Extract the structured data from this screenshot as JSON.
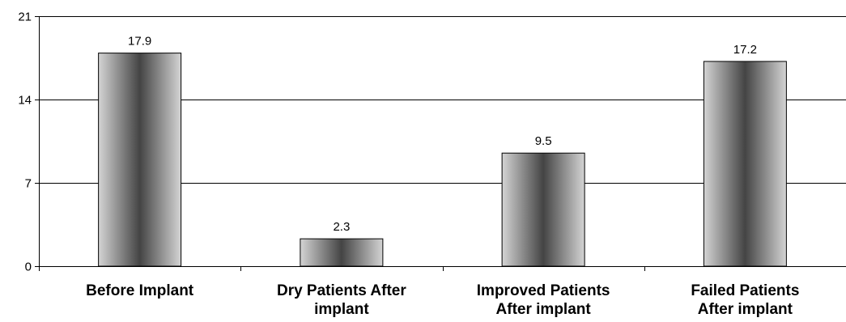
{
  "chart_data": {
    "type": "bar",
    "categories": [
      [
        "Before Implant"
      ],
      [
        "Dry Patients After",
        "implant"
      ],
      [
        "Improved Patients",
        "After implant"
      ],
      [
        "Failed Patients",
        "After implant"
      ]
    ],
    "values": [
      17.9,
      2.3,
      9.5,
      17.2
    ],
    "data_labels": [
      "17.9",
      "2.3",
      "9.5",
      "17.2"
    ],
    "yticks": [
      {
        "value": 0,
        "label": "0"
      },
      {
        "value": 7,
        "label": "7"
      },
      {
        "value": 14,
        "label": "14"
      },
      {
        "value": 21,
        "label": "21"
      }
    ],
    "ylim": [
      0,
      21
    ],
    "grid": true,
    "legend": "none",
    "bar_gradient": [
      "#d4d4d4",
      "#444444",
      "#d4d4d4"
    ]
  }
}
